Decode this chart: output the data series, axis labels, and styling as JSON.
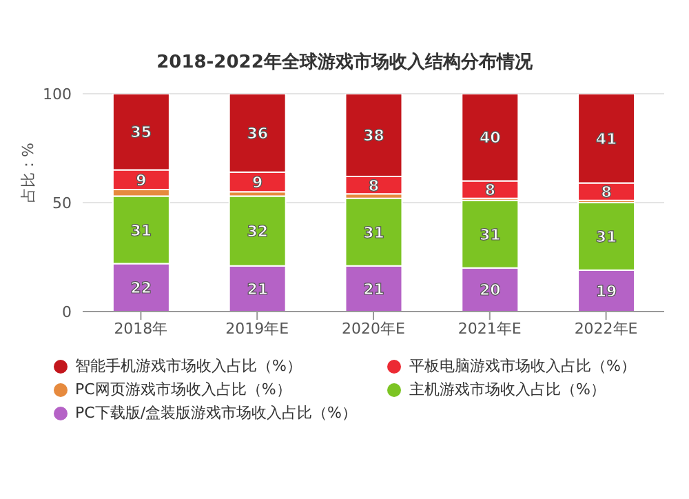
{
  "chart_data": {
    "type": "bar",
    "title": "2018-2022年全球游戏市场收入结构分布情况",
    "ylabel": "占比：%",
    "categories": [
      "2018年",
      "2019年E",
      "2020年E",
      "2021年E",
      "2022年E"
    ],
    "stacked": true,
    "ylim": [
      0,
      100
    ],
    "yticks": [
      0,
      50,
      100
    ],
    "grid": "y",
    "legend": "bottom",
    "series": [
      {
        "name": "PC下载版/盒装版游戏市场收入占比（%）",
        "color": "#b562c6",
        "values": [
          22,
          21,
          21,
          20,
          19
        ],
        "value_labels": [
          "22",
          "21",
          "21",
          "20",
          "19"
        ]
      },
      {
        "name": "主机游戏市场收入占比（%）",
        "color": "#7cc423",
        "values": [
          31,
          32,
          31,
          31,
          31
        ],
        "value_labels": [
          "31",
          "32",
          "31",
          "31",
          "31"
        ]
      },
      {
        "name": "PC网页游戏市场收入占比（%）",
        "color": "#e68a3e",
        "values": [
          3,
          2,
          2,
          1,
          1
        ],
        "value_labels": [
          null,
          null,
          null,
          null,
          null
        ]
      },
      {
        "name": "平板电脑游戏市场收入占比（%）",
        "color": "#ec2a33",
        "values": [
          9,
          9,
          8,
          8,
          8
        ],
        "value_labels": [
          "9",
          "9",
          "8",
          "8",
          "8"
        ]
      },
      {
        "name": "智能手机游戏市场收入占比（%）",
        "color": "#c3161c",
        "values": [
          35,
          36,
          38,
          40,
          41
        ],
        "value_labels": [
          "35",
          "36",
          "38",
          "40",
          "41"
        ]
      }
    ]
  }
}
